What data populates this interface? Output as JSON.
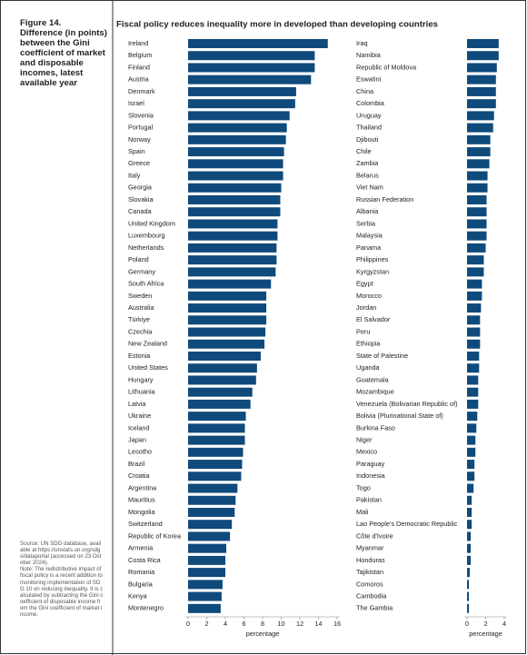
{
  "figure": {
    "label": "Figure 14.",
    "caption": "Difference (in points) between the Gini coefficient of market and disposable incomes, latest available year"
  },
  "title": "Fiscal policy reduces inequality more in developed than developing countries",
  "source": "Source: UN SDG database, available at https://unstats.un.org/sdgs/dataportal (accessed on 23 October 2024).",
  "note": "Note: The redistributive impact of fiscal policy is a recent addition to monitoring implementation of SDG 10 on reducing inequality. It is calculated by subtracting the Gini coefficient of disposable income from the Gini coefficient of market income.",
  "chart_data": [
    {
      "type": "hbar",
      "color": "#0f4a7c",
      "xlabel": "percentage",
      "xlim": [
        0,
        16
      ],
      "xticks": [
        0,
        2,
        4,
        6,
        8,
        10,
        12,
        14,
        16
      ],
      "categories": [
        "Ireland",
        "Belgium",
        "Finland",
        "Austria",
        "Denmark",
        "Israel",
        "Slovenia",
        "Portugal",
        "Norway",
        "Spain",
        "Greece",
        "Italy",
        "Georgia",
        "Slovakia",
        "Canada",
        "United Kingdom",
        "Luxembourg",
        "Netherlands",
        "Poland",
        "Germany",
        "South Africa",
        "Sweden",
        "Australia",
        "Türkiye",
        "Czechia",
        "New Zealand",
        "Estonia",
        "United States",
        "Hungary",
        "Lithuania",
        "Latvia",
        "Ukraine",
        "Iceland",
        "Japan",
        "Lesotho",
        "Brazil",
        "Croatia",
        "Argentina",
        "Mauritius",
        "Mongolia",
        "Switzerland",
        "Republic of Korea",
        "Armenia",
        "Costa Rica",
        "Romania",
        "Bulgaria",
        "Kenya",
        "Montenegro"
      ],
      "values": [
        15.0,
        13.6,
        13.6,
        13.2,
        11.6,
        11.5,
        10.9,
        10.6,
        10.5,
        10.3,
        10.2,
        10.2,
        10.0,
        9.9,
        9.9,
        9.6,
        9.6,
        9.5,
        9.5,
        9.4,
        8.9,
        8.4,
        8.4,
        8.4,
        8.3,
        8.2,
        7.8,
        7.4,
        7.3,
        6.9,
        6.7,
        6.2,
        6.1,
        6.1,
        5.9,
        5.8,
        5.7,
        5.3,
        5.1,
        5.0,
        4.7,
        4.5,
        4.1,
        4.0,
        4.0,
        3.7,
        3.6,
        3.5
      ]
    },
    {
      "type": "hbar",
      "color": "#0f4a7c",
      "xlabel": "percentage",
      "xlim": [
        0,
        4
      ],
      "xticks": [
        0,
        2,
        4
      ],
      "categories": [
        "Iraq",
        "Namibia",
        "Republic of Moldova",
        "Eswatini",
        "China",
        "Colombia",
        "Uruguay",
        "Thailand",
        "Djibouti",
        "Chile",
        "Zambia",
        "Belarus",
        "Viet Nam",
        "Russian Federation",
        "Albania",
        "Serbia",
        "Malaysia",
        "Panama",
        "Philippines",
        "Kyrgyzstan",
        "Egypt",
        "Morocco",
        "Jordan",
        "El Salvador",
        "Peru",
        "Ethiopia",
        "State of Palestine",
        "Uganda",
        "Guatemala",
        "Mozambique",
        "Venezuela (Bolivarian Republic of)",
        "Bolivia (Plurinational State of)",
        "Burkina Faso",
        "Niger",
        "Mexico",
        "Paraguay",
        "Indonesia",
        "Togo",
        "Pakistan",
        "Mali",
        "Lao People's Democratic Republic",
        "Côte d'Ivoire",
        "Myanmar",
        "Honduras",
        "Tajikistan",
        "Comoros",
        "Cambodia",
        "The Gambia"
      ],
      "values": [
        3.4,
        3.4,
        3.2,
        3.1,
        3.1,
        3.1,
        2.9,
        2.8,
        2.5,
        2.5,
        2.4,
        2.2,
        2.2,
        2.1,
        2.1,
        2.1,
        2.1,
        2.0,
        1.8,
        1.8,
        1.6,
        1.6,
        1.5,
        1.4,
        1.4,
        1.4,
        1.3,
        1.3,
        1.2,
        1.2,
        1.2,
        1.1,
        1.0,
        0.9,
        0.9,
        0.8,
        0.8,
        0.7,
        0.5,
        0.5,
        0.5,
        0.4,
        0.4,
        0.4,
        0.3,
        0.2,
        0.2,
        0.2
      ]
    }
  ]
}
